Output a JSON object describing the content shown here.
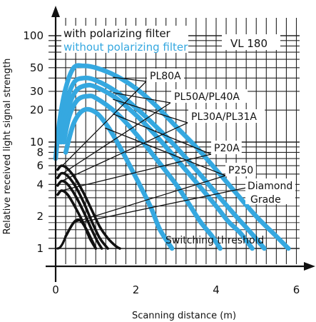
{
  "chart_data": {
    "type": "line",
    "title": "",
    "xlabel": "Scanning distance (m)",
    "ylabel": "Relative received light signal strength",
    "yscale": "log",
    "xlim": [
      0,
      6.3
    ],
    "ylim": [
      0.85,
      120
    ],
    "grid": true,
    "x_ticks": [
      0,
      2,
      4,
      6
    ],
    "y_ticks": [
      1,
      2,
      4,
      6,
      8,
      10,
      20,
      30,
      50,
      100
    ],
    "legend": [
      {
        "label": "with polarizing filter",
        "color": "#111111"
      },
      {
        "label": "without polarizing filter",
        "color": "#35a8e0"
      }
    ],
    "model_label": "VL 180",
    "threshold_label": "Switching threshold",
    "threshold_value": 1,
    "series": [
      {
        "name": "PL80A",
        "label_text": "PL80A",
        "color": "#35a8e0",
        "points": [
          [
            0,
            7
          ],
          [
            0.1,
            16
          ],
          [
            0.25,
            32
          ],
          [
            0.45,
            50
          ],
          [
            0.7,
            52
          ],
          [
            1.0,
            50
          ],
          [
            1.5,
            42
          ],
          [
            2.0,
            32
          ],
          [
            2.5,
            22
          ],
          [
            3.0,
            14
          ],
          [
            3.5,
            9
          ],
          [
            4.0,
            5.5
          ],
          [
            4.5,
            3.3
          ],
          [
            5.0,
            2
          ],
          [
            5.5,
            1.3
          ],
          [
            5.8,
            1
          ]
        ]
      },
      {
        "name": "PL50A/PL40A",
        "label_text": "PL50A/PL40A",
        "color": "#35a8e0",
        "points": [
          [
            0.12,
            10
          ],
          [
            0.25,
            22
          ],
          [
            0.45,
            36
          ],
          [
            0.7,
            40
          ],
          [
            1.0,
            38
          ],
          [
            1.5,
            30
          ],
          [
            2.0,
            21
          ],
          [
            2.5,
            14
          ],
          [
            3.0,
            9
          ],
          [
            3.5,
            5.5
          ],
          [
            4.0,
            3.3
          ],
          [
            4.5,
            2
          ],
          [
            4.8,
            1.5
          ],
          [
            5.2,
            1
          ]
        ]
      },
      {
        "name": "PL30A/PL31A",
        "label_text": "PL30A/PL31A",
        "color": "#35a8e0",
        "points": [
          [
            0.15,
            10
          ],
          [
            0.3,
            20
          ],
          [
            0.5,
            30
          ],
          [
            0.75,
            34
          ],
          [
            1.0,
            33
          ],
          [
            1.5,
            26
          ],
          [
            2.0,
            18
          ],
          [
            2.5,
            11.5
          ],
          [
            3.0,
            7
          ],
          [
            3.5,
            4.2
          ],
          [
            4.0,
            2.5
          ],
          [
            4.3,
            1.8
          ],
          [
            4.6,
            1.4
          ],
          [
            4.9,
            1
          ]
        ]
      },
      {
        "name": "P20A",
        "label_text": "P20A",
        "color": "#35a8e0",
        "points": [
          [
            0.2,
            10
          ],
          [
            0.35,
            18
          ],
          [
            0.55,
            25
          ],
          [
            0.8,
            27
          ],
          [
            1.0,
            26
          ],
          [
            1.5,
            19
          ],
          [
            2.0,
            12
          ],
          [
            2.5,
            7
          ],
          [
            3.0,
            4
          ],
          [
            3.3,
            2.7
          ],
          [
            3.6,
            1.8
          ],
          [
            3.9,
            1.3
          ],
          [
            4.1,
            1
          ]
        ]
      },
      {
        "name": "P250",
        "label_text": "P250",
        "color": "#35a8e0",
        "points": [
          [
            0.25,
            8
          ],
          [
            0.45,
            15
          ],
          [
            0.7,
            20
          ],
          [
            1.0,
            19
          ],
          [
            1.3,
            14
          ],
          [
            1.6,
            9
          ],
          [
            1.9,
            5.5
          ],
          [
            2.2,
            3.3
          ],
          [
            2.4,
            2.3
          ],
          [
            2.6,
            1.5
          ],
          [
            2.9,
            1
          ]
        ]
      },
      {
        "name": "PL80A polarized",
        "color": "#111111",
        "points": [
          [
            0.05,
            5.5
          ],
          [
            0.15,
            6
          ],
          [
            0.3,
            5.6
          ],
          [
            0.5,
            4.5
          ],
          [
            0.7,
            3.3
          ],
          [
            0.9,
            2.3
          ],
          [
            1.1,
            1.6
          ],
          [
            1.3,
            1.25
          ],
          [
            1.5,
            1.05
          ],
          [
            1.6,
            1
          ]
        ]
      },
      {
        "name": "PL50A/PL40A polarized",
        "color": "#111111",
        "points": [
          [
            0.05,
            4.6
          ],
          [
            0.15,
            5.1
          ],
          [
            0.3,
            4.8
          ],
          [
            0.5,
            3.8
          ],
          [
            0.7,
            2.7
          ],
          [
            0.9,
            1.8
          ],
          [
            1.1,
            1.25
          ],
          [
            1.3,
            1
          ]
        ]
      },
      {
        "name": "PL30A/PL31A polarized",
        "color": "#111111",
        "points": [
          [
            0.05,
            3.9
          ],
          [
            0.15,
            4.3
          ],
          [
            0.3,
            4.0
          ],
          [
            0.5,
            3.1
          ],
          [
            0.7,
            2.2
          ],
          [
            0.9,
            1.5
          ],
          [
            1.05,
            1.15
          ],
          [
            1.15,
            1
          ]
        ]
      },
      {
        "name": "P20A polarized",
        "color": "#111111",
        "points": [
          [
            0.05,
            3.2
          ],
          [
            0.15,
            3.5
          ],
          [
            0.3,
            3.2
          ],
          [
            0.5,
            2.4
          ],
          [
            0.7,
            1.7
          ],
          [
            0.85,
            1.25
          ],
          [
            1.0,
            1
          ]
        ]
      },
      {
        "name": "P250 polarized",
        "color": "#111111",
        "points": [
          [
            0.25,
            1.3
          ],
          [
            0.45,
            1.75
          ],
          [
            0.6,
            1.85
          ],
          [
            0.75,
            1.55
          ],
          [
            0.9,
            1.2
          ],
          [
            1.0,
            1
          ]
        ]
      }
    ],
    "annotations": [
      {
        "text": "Diamond"
      },
      {
        "text": "Grade"
      }
    ]
  }
}
